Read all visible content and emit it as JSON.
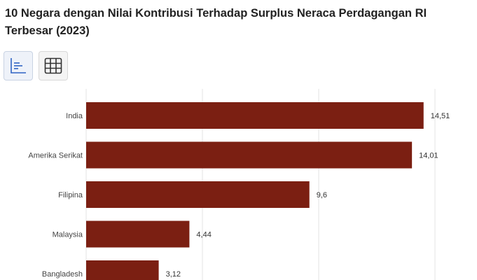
{
  "chart_data": {
    "type": "bar",
    "orientation": "horizontal",
    "title": "10 Negara dengan Nilai Kontribusi Terhadap Surplus Neraca Perdagangan RI Terbesar (2023)",
    "categories": [
      "India",
      "Amerika Serikat",
      "Filipina",
      "Malaysia",
      "Bangladesh"
    ],
    "values": [
      14.51,
      14.01,
      9.6,
      4.44,
      3.12
    ],
    "value_labels": [
      "14,51",
      "14,01",
      "9,6",
      "4,44",
      "3,12"
    ],
    "xlim": [
      0,
      16
    ],
    "grid": true,
    "bar_color": "#7b1f12"
  },
  "toolbar": {
    "chart_view_icon": "bar-chart-icon",
    "table_view_icon": "table-grid-icon"
  }
}
